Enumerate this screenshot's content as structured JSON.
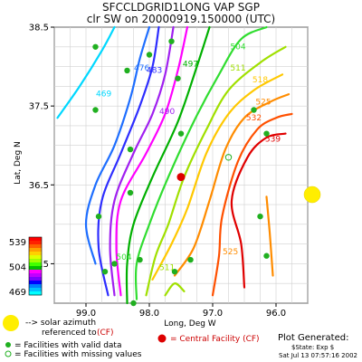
{
  "title_line1": "SFCCLDGRID1LONG VAP SGP",
  "title_line2": "clr SW on 20000919.150000 (UTC)",
  "chart_data": {
    "type": "contour",
    "title": "SFCCLDGRID1LONG VAP SGP",
    "subtitle": "clr SW on 20000919.150000 (UTC)",
    "xlabel": "Long, Deg W",
    "ylabel": "Lat, Deg N",
    "xlim": [
      99.5,
      95.5
    ],
    "ylim": [
      35.0,
      38.5
    ],
    "x_ticks": [
      "99.0",
      "98.0",
      "97.0",
      "96.0"
    ],
    "y_ticks": [
      "38.5",
      "37.5",
      "36.5",
      "35.5"
    ],
    "grid": true,
    "colorbar": {
      "ticks": [
        "539",
        "504",
        "469"
      ],
      "colors": [
        "#ff0000",
        "#ff2000",
        "#ff6000",
        "#ffa000",
        "#ffd000",
        "#e0ff00",
        "#a0ff00",
        "#40ff00",
        "#00c000",
        "#ff00ff",
        "#c000ff",
        "#8000ff",
        "#0000ff",
        "#0080ff",
        "#00c0ff",
        "#00ffff"
      ]
    },
    "contours": [
      {
        "level": "469",
        "color": "#00d8ff",
        "points": [
          [
            99.45,
            37.35
          ],
          [
            99.1,
            37.75
          ],
          [
            98.75,
            38.2
          ],
          [
            98.55,
            38.5
          ]
        ],
        "label_at": [
          98.72,
          37.62
        ]
      },
      {
        "level": "476",
        "color": "#1e6eff",
        "points": [
          [
            98.85,
            35.5
          ],
          [
            99.0,
            36.0
          ],
          [
            98.85,
            36.5
          ],
          [
            98.55,
            37.0
          ],
          [
            98.3,
            37.6
          ],
          [
            98.15,
            38.1
          ],
          [
            98.0,
            38.5
          ]
        ],
        "label_at": [
          98.12,
          37.95
        ]
      },
      {
        "level": "483",
        "color": "#2d2dff",
        "points": [
          [
            98.65,
            35.1
          ],
          [
            98.8,
            35.7
          ],
          [
            98.75,
            36.3
          ],
          [
            98.45,
            36.9
          ],
          [
            98.15,
            37.5
          ],
          [
            97.95,
            38.0
          ],
          [
            97.85,
            38.5
          ]
        ],
        "label_at": [
          97.92,
          37.92
        ]
      },
      {
        "level": "490",
        "color": "#a020f0",
        "points": [
          [
            98.55,
            35.1
          ],
          [
            98.62,
            35.7
          ],
          [
            98.55,
            36.3
          ],
          [
            98.25,
            36.9
          ],
          [
            97.95,
            37.4
          ],
          [
            97.75,
            37.9
          ],
          [
            97.62,
            38.5
          ]
        ],
        "label_at": [
          97.72,
          37.4
        ]
      },
      {
        "level": "",
        "color": "#ff00ff",
        "points": [
          [
            98.45,
            35.1
          ],
          [
            98.52,
            35.7
          ],
          [
            98.45,
            36.3
          ],
          [
            98.05,
            36.9
          ],
          [
            97.75,
            37.4
          ],
          [
            97.55,
            37.95
          ],
          [
            97.4,
            38.5
          ]
        ],
        "label_at": null
      },
      {
        "level": "497",
        "color": "#00b000",
        "points": [
          [
            98.35,
            35.0
          ],
          [
            98.35,
            35.5
          ],
          [
            98.25,
            36.0
          ],
          [
            97.95,
            36.6
          ],
          [
            97.55,
            37.3
          ],
          [
            97.25,
            38.0
          ],
          [
            97.05,
            38.5
          ]
        ],
        "label_at": [
          97.35,
          38.0
        ]
      },
      {
        "level": "504",
        "color": "#30dd30",
        "points": [
          [
            98.2,
            35.05
          ],
          [
            98.2,
            35.5
          ],
          [
            98.0,
            36.0
          ],
          [
            97.7,
            36.6
          ],
          [
            97.3,
            37.3
          ],
          [
            96.9,
            37.9
          ],
          [
            96.55,
            38.35
          ],
          [
            96.15,
            38.5
          ]
        ],
        "label_at": [
          96.6,
          38.22
        ]
      },
      {
        "level": "511",
        "color": "#a0e000",
        "points": [
          [
            98.05,
            35.1
          ],
          [
            97.9,
            35.6
          ],
          [
            97.7,
            36.0
          ],
          [
            97.45,
            36.6
          ],
          [
            97.1,
            37.2
          ],
          [
            96.75,
            37.7
          ],
          [
            96.25,
            38.05
          ],
          [
            95.85,
            38.25
          ]
        ],
        "label_at": [
          96.6,
          37.95
        ]
      },
      {
        "level": "518",
        "color": "#ffc800",
        "points": [
          [
            97.95,
            35.3
          ],
          [
            97.65,
            35.75
          ],
          [
            97.4,
            36.2
          ],
          [
            97.1,
            36.9
          ],
          [
            96.75,
            37.4
          ],
          [
            96.35,
            37.7
          ],
          [
            95.9,
            37.9
          ]
        ],
        "label_at": [
          96.25,
          37.8
        ]
      },
      {
        "level": "525",
        "color": "#ff8c00",
        "points": [
          [
            97.6,
            35.35
          ],
          [
            97.3,
            35.7
          ],
          [
            97.05,
            36.3
          ],
          [
            96.8,
            36.95
          ],
          [
            96.5,
            37.35
          ],
          [
            96.1,
            37.55
          ],
          [
            95.8,
            37.65
          ]
        ],
        "label_at": [
          96.2,
          37.52
        ]
      },
      {
        "level": "532",
        "color": "#ff5000",
        "points": [
          [
            97.0,
            35.1
          ],
          [
            96.9,
            35.6
          ],
          [
            96.85,
            36.1
          ],
          [
            96.6,
            36.8
          ],
          [
            96.3,
            37.2
          ],
          [
            96.0,
            37.35
          ],
          [
            95.75,
            37.4
          ]
        ],
        "label_at": [
          96.35,
          37.32
        ]
      },
      {
        "level": "539",
        "color": "#e00000",
        "points": [
          [
            96.5,
            35.2
          ],
          [
            96.55,
            35.75
          ],
          [
            96.7,
            36.3
          ],
          [
            96.45,
            36.85
          ],
          [
            96.15,
            37.1
          ],
          [
            95.85,
            37.15
          ]
        ],
        "label_at": [
          96.05,
          37.05
        ]
      },
      {
        "level": "525",
        "color": "#ff8c00",
        "points": [
          [
            96.05,
            35.35
          ],
          [
            96.1,
            35.9
          ],
          [
            96.15,
            36.35
          ]
        ],
        "label_at": [
          96.72,
          35.62
        ]
      },
      {
        "level": "511",
        "color": "#a0e000",
        "points": [
          [
            97.75,
            35.1
          ],
          [
            97.6,
            35.25
          ],
          [
            97.45,
            35.15
          ]
        ],
        "label_at": [
          97.72,
          35.42
        ]
      },
      {
        "level": "504",
        "color": "#30dd30",
        "points": [],
        "label_at": [
          98.4,
          35.55
        ]
      }
    ],
    "facilities_valid": [
      [
        98.85,
        38.25
      ],
      [
        98.35,
        37.95
      ],
      [
        98.0,
        38.15
      ],
      [
        97.65,
        38.32
      ],
      [
        97.55,
        37.85
      ],
      [
        98.85,
        37.45
      ],
      [
        97.5,
        37.15
      ],
      [
        96.35,
        37.45
      ],
      [
        96.15,
        37.15
      ],
      [
        98.3,
        36.95
      ],
      [
        98.3,
        36.4
      ],
      [
        98.8,
        36.1
      ],
      [
        96.25,
        36.1
      ],
      [
        98.55,
        35.5
      ],
      [
        98.15,
        35.55
      ],
      [
        97.35,
        35.55
      ],
      [
        96.15,
        35.6
      ],
      [
        98.7,
        35.4
      ],
      [
        97.6,
        35.4
      ],
      [
        98.25,
        35.0
      ]
    ],
    "facilities_missing": [
      [
        96.75,
        36.85
      ]
    ],
    "central_facility": [
      97.5,
      36.6
    ],
    "solar_azimuth": "east"
  },
  "legend": {
    "solar_text_1": "--> solar azimuth",
    "solar_text_2": "referenced to",
    "solar_cf": "(CF)",
    "valid_text": "= Facilities with valid data",
    "missing_text": "= Facilities with missing values",
    "central_text": "= Central Facility (CF)",
    "colors": {
      "solar": "#ffee00",
      "valid": "#20b020",
      "central": "#dd0000",
      "central_text": "#cc0000"
    }
  },
  "footer": {
    "generated": "Plot Generated:",
    "state": "$State: Exp $",
    "date": "Sat Jul 13 07:57:16 2002"
  }
}
